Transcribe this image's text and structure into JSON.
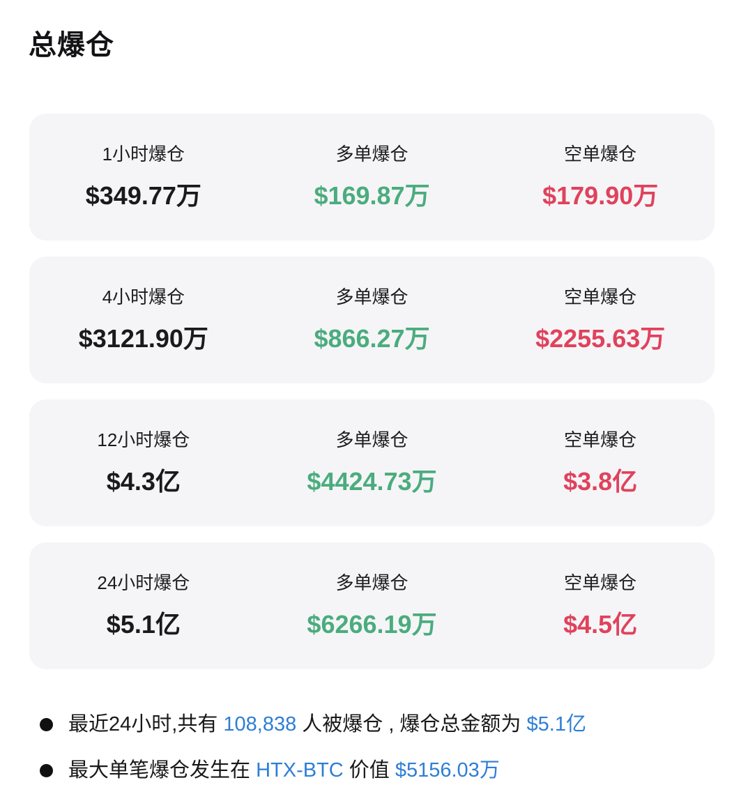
{
  "page": {
    "title": "总爆仓"
  },
  "colors": {
    "card_background": "#f5f5f7",
    "text_primary": "#1a1a1c",
    "long_green": "#4bac7e",
    "short_red": "#e0425c",
    "link_blue": "#2d7ed5"
  },
  "cards": [
    {
      "period_label": "1小时爆仓",
      "total_value": "$349.77万",
      "long_label": "多单爆仓",
      "long_value": "$169.87万",
      "short_label": "空单爆仓",
      "short_value": "$179.90万"
    },
    {
      "period_label": "4小时爆仓",
      "total_value": "$3121.90万",
      "long_label": "多单爆仓",
      "long_value": "$866.27万",
      "short_label": "空单爆仓",
      "short_value": "$2255.63万"
    },
    {
      "period_label": "12小时爆仓",
      "total_value": "$4.3亿",
      "long_label": "多单爆仓",
      "long_value": "$4424.73万",
      "short_label": "空单爆仓",
      "short_value": "$3.8亿"
    },
    {
      "period_label": "24小时爆仓",
      "total_value": "$5.1亿",
      "long_label": "多单爆仓",
      "long_value": "$6266.19万",
      "short_label": "空单爆仓",
      "short_value": "$4.5亿"
    }
  ],
  "notes": [
    {
      "seg1": "最近24小时,共有 ",
      "seg2": "108,838",
      "seg3": " 人被爆仓 , 爆仓总金额为 ",
      "seg4": "$5.1亿"
    },
    {
      "seg1": "最大单笔爆仓发生在 ",
      "seg2": "HTX-BTC",
      "seg3": " 价值 ",
      "seg4": "$5156.03万"
    }
  ]
}
